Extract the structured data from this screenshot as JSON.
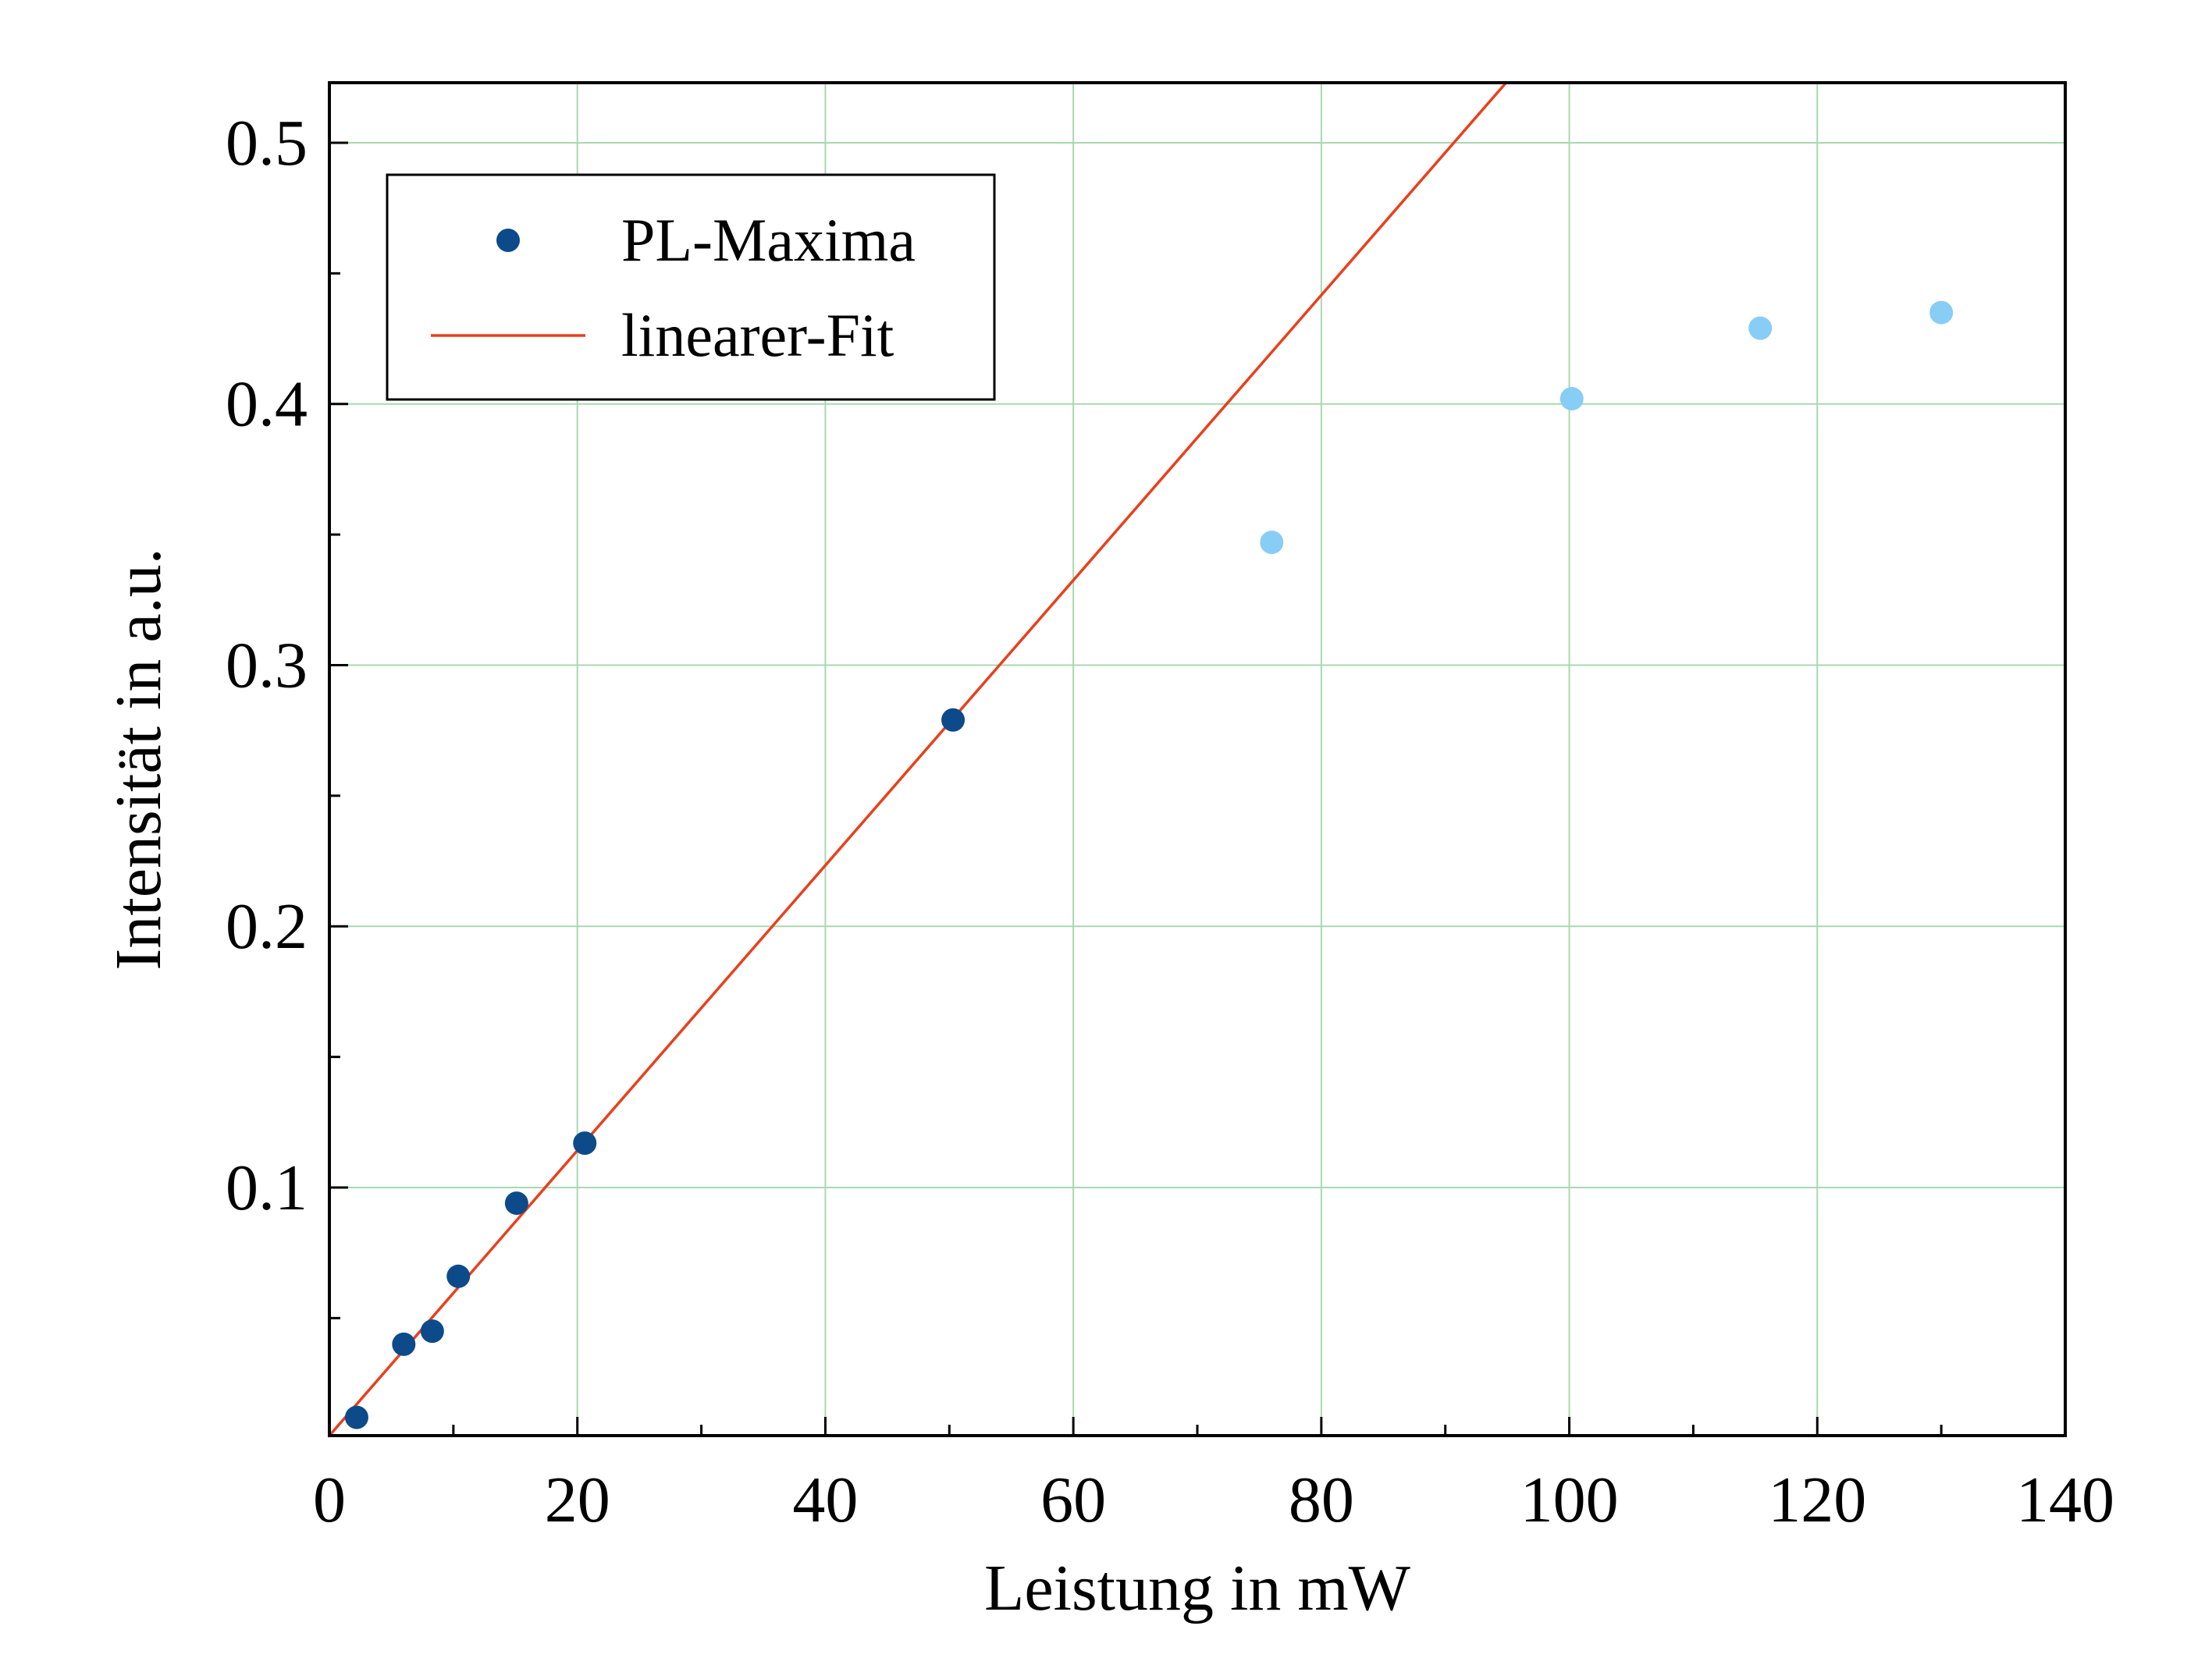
{
  "chart_data": {
    "type": "scatter",
    "xlabel": "Leistung in mW",
    "ylabel": "Intensität in a.u.",
    "xlim": [
      0,
      140
    ],
    "ylim": [
      0.005,
      0.523
    ],
    "x_ticks": [
      0,
      20,
      40,
      60,
      80,
      100,
      120,
      140
    ],
    "x_tick_labels": [
      "0",
      "20",
      "40",
      "60",
      "80",
      "100",
      "120",
      "140"
    ],
    "y_ticks": [
      0.1,
      0.2,
      0.3,
      0.4,
      0.5
    ],
    "y_tick_labels": [
      "0.1",
      "0.2",
      "0.3",
      "0.4",
      "0.5"
    ],
    "x_minor_step": 10,
    "y_minor_step": 0.05,
    "grid": true,
    "legend_position": "top-left",
    "series": [
      {
        "name": "PL-Maxima",
        "kind": "scatter",
        "color": "#0d4a8a",
        "x": [
          2.2,
          6.0,
          8.3,
          10.4,
          15.1,
          20.6,
          50.3
        ],
        "y": [
          0.012,
          0.04,
          0.045,
          0.066,
          0.094,
          0.117,
          0.279
        ]
      },
      {
        "name": "",
        "kind": "scatter",
        "color": "#87cdf5",
        "x": [
          76.0,
          100.2,
          115.4,
          130.0
        ],
        "y": [
          0.347,
          0.402,
          0.429,
          0.435
        ]
      },
      {
        "name": "linearer-Fit",
        "kind": "line",
        "color": "#e8401c",
        "x": [
          0,
          94.9
        ],
        "y": [
          0.005,
          0.523
        ]
      }
    ],
    "colors": {
      "grid": "#a8d8b0",
      "axis": "#000000"
    }
  }
}
